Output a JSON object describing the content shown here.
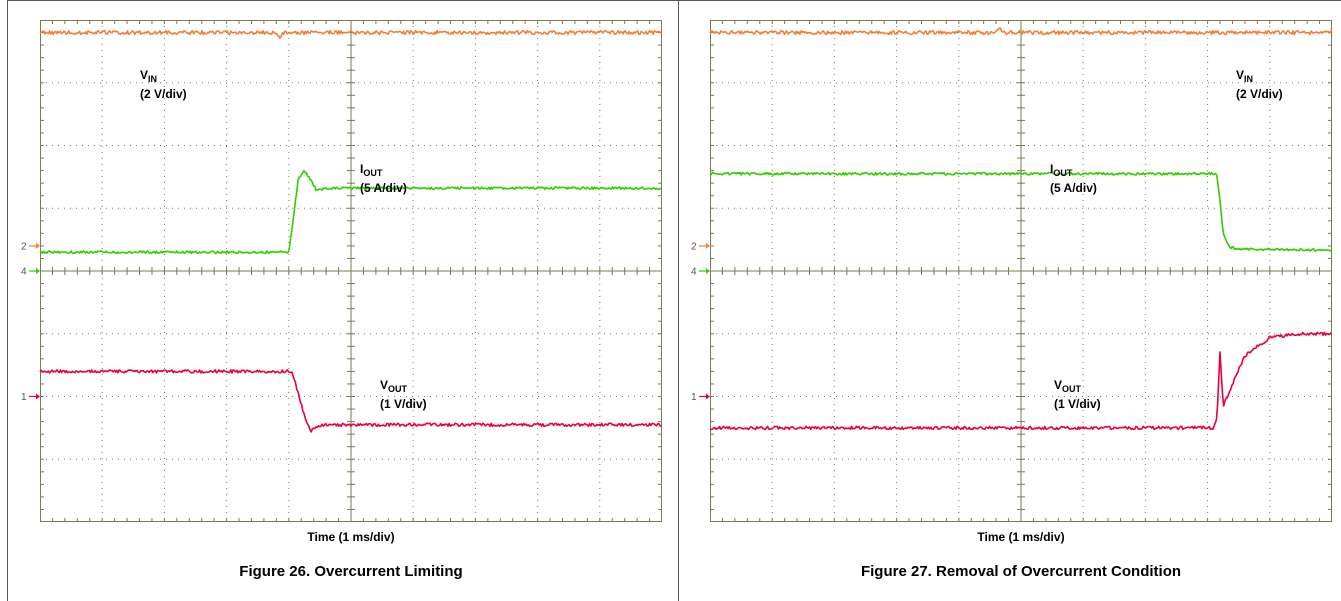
{
  "chart_data": [
    {
      "type": "line",
      "title": "Figure 26. Overcurrent Limiting",
      "xlabel": "Time (1 ms/div)",
      "x_divisions": 10,
      "y_divisions": 8,
      "colors": {
        "vin": "#f07f3c",
        "iout": "#33cc00",
        "vout": "#e8003f",
        "grid": "#7a7a55"
      },
      "channel_markers": [
        {
          "label": "2",
          "color": "#f07f3c",
          "y_div": 3.6
        },
        {
          "label": "4",
          "color": "#33cc00",
          "y_div": 4.0
        },
        {
          "label": "1",
          "color": "#e8003f",
          "y_div": 6.0
        }
      ],
      "series": [
        {
          "key": "vin",
          "name": "V",
          "sub": "IN",
          "unit": "(2 V/div)",
          "x": [
            0,
            3.8,
            3.85,
            3.9,
            10
          ],
          "y": [
            0.2,
            0.2,
            0.28,
            0.2,
            0.2
          ],
          "noise": 0.03
        },
        {
          "key": "iout",
          "name": "I",
          "sub": "OUT",
          "unit": "(5 A/div)",
          "x": [
            0,
            4.0,
            4.08,
            4.15,
            4.25,
            4.35,
            4.45,
            4.6,
            10
          ],
          "y": [
            3.7,
            3.7,
            3.1,
            2.55,
            2.4,
            2.55,
            2.72,
            2.68,
            2.68
          ],
          "noise": 0.02
        },
        {
          "key": "vout",
          "name": "V",
          "sub": "OUT",
          "unit": "(1 V/div)",
          "x": [
            0,
            4.05,
            4.15,
            4.25,
            4.35,
            4.45,
            4.6,
            10
          ],
          "y": [
            5.6,
            5.6,
            5.95,
            6.3,
            6.55,
            6.47,
            6.45,
            6.45
          ],
          "noise": 0.025
        }
      ]
    },
    {
      "type": "line",
      "title": "Figure 27. Removal of Overcurrent Condition",
      "xlabel": "Time (1 ms/div)",
      "x_divisions": 10,
      "y_divisions": 8,
      "colors": {
        "vin": "#f07f3c",
        "iout": "#33cc00",
        "vout": "#e8003f",
        "grid": "#7a7a55"
      },
      "channel_markers": [
        {
          "label": "2",
          "color": "#f07f3c",
          "y_div": 3.6
        },
        {
          "label": "4",
          "color": "#33cc00",
          "y_div": 4.0
        },
        {
          "label": "1",
          "color": "#e8003f",
          "y_div": 6.0
        }
      ],
      "series": [
        {
          "key": "vin",
          "name": "V",
          "sub": "IN",
          "unit": "(2 V/div)",
          "x": [
            0,
            4.6,
            4.65,
            4.7,
            10
          ],
          "y": [
            0.2,
            0.2,
            0.13,
            0.2,
            0.2
          ],
          "noise": 0.03
        },
        {
          "key": "iout",
          "name": "I",
          "sub": "OUT",
          "unit": "(5 A/div)",
          "x": [
            0,
            8.15,
            8.2,
            8.25,
            8.35,
            8.5,
            10
          ],
          "y": [
            2.45,
            2.45,
            2.9,
            3.4,
            3.62,
            3.65,
            3.67
          ],
          "noise": 0.02
        },
        {
          "key": "vout",
          "name": "V",
          "sub": "OUT",
          "unit": "(1 V/div)",
          "x": [
            0,
            8.1,
            8.15,
            8.2,
            8.25,
            8.32,
            8.4,
            8.6,
            9.0,
            9.5,
            10
          ],
          "y": [
            6.5,
            6.5,
            6.35,
            5.3,
            6.15,
            6.0,
            5.8,
            5.35,
            5.06,
            5.0,
            5.0
          ],
          "noise": 0.025
        }
      ]
    }
  ]
}
